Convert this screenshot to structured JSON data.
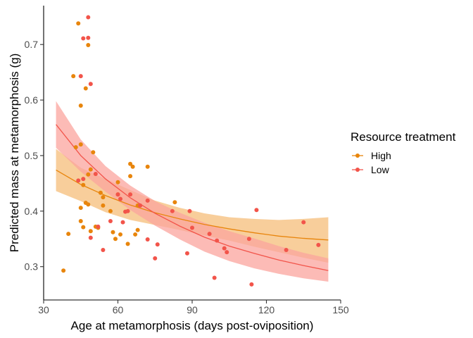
{
  "chart_data": {
    "type": "scatter",
    "title": "",
    "xlabel": "Age at metamorphosis (days post-oviposition)",
    "ylabel": "Predicted mass at metamorphosis (g)",
    "xlim": [
      30,
      150
    ],
    "ylim": [
      0.24,
      0.77
    ],
    "x_ticks": [
      30,
      60,
      90,
      120,
      150
    ],
    "y_ticks": [
      0.3,
      0.4,
      0.5,
      0.6,
      0.7
    ],
    "y_tick_labels": [
      "0.3",
      "0.4",
      "0.5",
      "0.6",
      "0.7"
    ],
    "grid": false,
    "legend": {
      "title": "Resource treatment",
      "position": "right",
      "entries": [
        "High",
        "Low"
      ]
    },
    "series": [
      {
        "name": "High",
        "color": "#E8850C",
        "ribbon_color": "#F5BE7A",
        "points": [
          [
            38,
            0.293
          ],
          [
            40,
            0.359
          ],
          [
            42,
            0.643
          ],
          [
            43,
            0.515
          ],
          [
            44,
            0.738
          ],
          [
            45,
            0.59
          ],
          [
            45,
            0.52
          ],
          [
            45,
            0.406
          ],
          [
            45,
            0.382
          ],
          [
            46,
            0.447
          ],
          [
            46,
            0.371
          ],
          [
            47,
            0.415
          ],
          [
            47,
            0.621
          ],
          [
            48,
            0.412
          ],
          [
            48,
            0.699
          ],
          [
            48,
            0.466
          ],
          [
            49,
            0.475
          ],
          [
            49,
            0.364
          ],
          [
            50,
            0.506
          ],
          [
            51,
            0.372
          ],
          [
            52,
            0.37
          ],
          [
            53,
            0.433
          ],
          [
            54,
            0.41
          ],
          [
            54,
            0.425
          ],
          [
            57,
            0.4
          ],
          [
            58,
            0.362
          ],
          [
            59,
            0.35
          ],
          [
            60,
            0.452
          ],
          [
            60,
            0.43
          ],
          [
            61,
            0.358
          ],
          [
            64,
            0.341
          ],
          [
            65,
            0.485
          ],
          [
            65,
            0.463
          ],
          [
            66,
            0.48
          ],
          [
            67,
            0.358
          ],
          [
            68,
            0.366
          ],
          [
            68,
            0.41
          ],
          [
            72,
            0.48
          ],
          [
            83,
            0.416
          ]
        ],
        "fit": {
          "x": [
            35,
            45,
            55,
            65,
            75,
            85,
            95,
            105,
            115,
            125,
            135,
            145
          ],
          "y": [
            0.474,
            0.448,
            0.428,
            0.411,
            0.397,
            0.386,
            0.376,
            0.368,
            0.361,
            0.355,
            0.351,
            0.348
          ]
        },
        "ribbon_low": [
          0.436,
          0.418,
          0.398,
          0.384,
          0.375,
          0.366,
          0.356,
          0.347,
          0.336,
          0.326,
          0.316,
          0.307
        ],
        "ribbon_high": [
          0.512,
          0.478,
          0.458,
          0.438,
          0.419,
          0.406,
          0.396,
          0.389,
          0.386,
          0.384,
          0.386,
          0.389
        ]
      },
      {
        "name": "Low",
        "color": "#F2544A",
        "ribbon_color": "#FBA49E",
        "points": [
          [
            44,
            0.455
          ],
          [
            45,
            0.643
          ],
          [
            46,
            0.458
          ],
          [
            46,
            0.711
          ],
          [
            48,
            0.712
          ],
          [
            48,
            0.749
          ],
          [
            49,
            0.629
          ],
          [
            49,
            0.352
          ],
          [
            51,
            0.467
          ],
          [
            52,
            0.372
          ],
          [
            54,
            0.33
          ],
          [
            57,
            0.382
          ],
          [
            60,
            0.43
          ],
          [
            61,
            0.422
          ],
          [
            62,
            0.38
          ],
          [
            63,
            0.399
          ],
          [
            64,
            0.4
          ],
          [
            65,
            0.43
          ],
          [
            69,
            0.41
          ],
          [
            72,
            0.419
          ],
          [
            72,
            0.349
          ],
          [
            75,
            0.315
          ],
          [
            76,
            0.34
          ],
          [
            82,
            0.4
          ],
          [
            88,
            0.324
          ],
          [
            89,
            0.4
          ],
          [
            90,
            0.37
          ],
          [
            97,
            0.359
          ],
          [
            99,
            0.28
          ],
          [
            100,
            0.347
          ],
          [
            103,
            0.333
          ],
          [
            104,
            0.326
          ],
          [
            113,
            0.35
          ],
          [
            114,
            0.268
          ],
          [
            116,
            0.402
          ],
          [
            128,
            0.33
          ],
          [
            135,
            0.38
          ],
          [
            141,
            0.339
          ]
        ],
        "fit": {
          "x": [
            35,
            45,
            55,
            65,
            75,
            85,
            95,
            105,
            115,
            125,
            135,
            145
          ],
          "y": [
            0.556,
            0.5,
            0.458,
            0.424,
            0.396,
            0.373,
            0.353,
            0.337,
            0.324,
            0.312,
            0.302,
            0.293
          ]
        },
        "ribbon_low": [
          0.514,
          0.471,
          0.435,
          0.402,
          0.374,
          0.349,
          0.327,
          0.31,
          0.297,
          0.287,
          0.279,
          0.273
        ],
        "ribbon_high": [
          0.598,
          0.529,
          0.481,
          0.446,
          0.418,
          0.397,
          0.379,
          0.364,
          0.351,
          0.337,
          0.325,
          0.315
        ]
      }
    ]
  }
}
